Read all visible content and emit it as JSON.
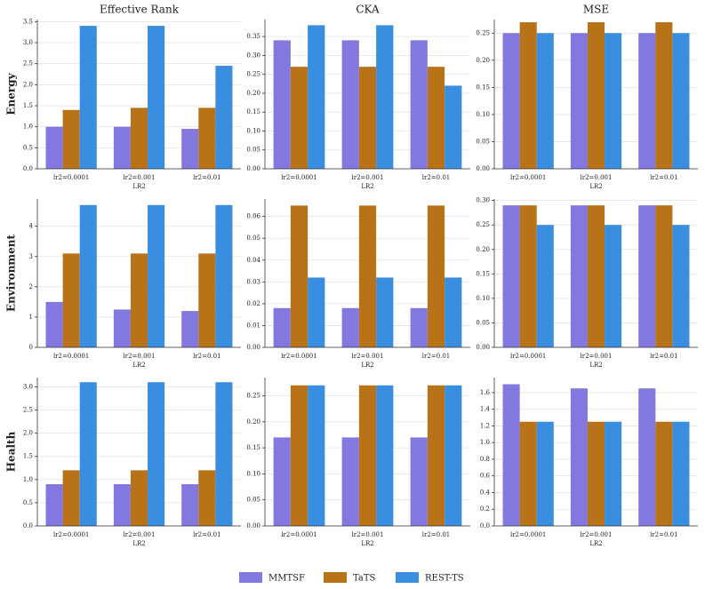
{
  "chart_data": [
    {
      "type": "bar",
      "title": "Effective Rank",
      "row_label": "Energy",
      "xlabel": "LR2",
      "categories": [
        "lr2=0.0001",
        "lr2=0.001",
        "lr2=0.01"
      ],
      "series": [
        {
          "name": "MMTSF",
          "color": "#8278e0",
          "values": [
            1.0,
            1.0,
            0.95
          ]
        },
        {
          "name": "TaTS",
          "color": "#b87218",
          "values": [
            1.4,
            1.45,
            1.45
          ]
        },
        {
          "name": "REST-TS",
          "color": "#3a8ee0",
          "values": [
            3.4,
            3.4,
            2.45
          ]
        }
      ],
      "ylim": [
        0,
        3.55
      ],
      "yticks": [
        {
          "value": 0,
          "label": "0.0"
        },
        0.5,
        {
          "value": 1,
          "label": "1.0"
        },
        1.5,
        {
          "value": 2,
          "label": "2.0"
        },
        2.5,
        {
          "value": 3,
          "label": "3.0"
        },
        3.5
      ],
      "grid": true
    },
    {
      "type": "bar",
      "title": "CKA",
      "xlabel": "LR2",
      "categories": [
        "lr2=0.0001",
        "lr2=0.001",
        "lr2=0.01"
      ],
      "series": [
        {
          "values": [
            0.34,
            0.34,
            0.34
          ]
        },
        {
          "values": [
            0.27,
            0.27,
            0.27
          ]
        },
        {
          "values": [
            0.38,
            0.38,
            0.22
          ]
        }
      ],
      "ylim": [
        0,
        0.395
      ],
      "yticks": [
        {
          "value": 0,
          "label": "0.00"
        },
        0.05,
        {
          "value": 0.1,
          "label": "0.10"
        },
        0.15,
        {
          "value": 0.2,
          "label": "0.20"
        },
        0.25,
        {
          "value": 0.3,
          "label": "0.30"
        },
        0.35
      ],
      "grid": true
    },
    {
      "type": "bar",
      "title": "MSE",
      "xlabel": "LR2",
      "categories": [
        "lr2=0.0001",
        "lr2=0.001",
        "lr2=0.01"
      ],
      "series": [
        {
          "values": [
            0.25,
            0.25,
            0.25
          ]
        },
        {
          "values": [
            0.27,
            0.27,
            0.27
          ]
        },
        {
          "values": [
            0.25,
            0.25,
            0.25
          ]
        }
      ],
      "ylim": [
        0,
        0.275
      ],
      "yticks": [
        {
          "value": 0,
          "label": "0.00"
        },
        0.05,
        {
          "value": 0.1,
          "label": "0.10"
        },
        0.15,
        {
          "value": 0.2,
          "label": "0.20"
        },
        0.25
      ],
      "grid": true
    },
    {
      "type": "bar",
      "row_label": "Environment",
      "xlabel": "LR2",
      "categories": [
        "lr2=0.0001",
        "lr2=0.001",
        "lr2=0.01"
      ],
      "series": [
        {
          "values": [
            1.5,
            1.25,
            1.2
          ]
        },
        {
          "values": [
            3.1,
            3.1,
            3.1
          ]
        },
        {
          "values": [
            4.7,
            4.7,
            4.7
          ]
        }
      ],
      "ylim": [
        0,
        4.9
      ],
      "yticks": [
        0,
        1,
        2,
        3,
        4
      ],
      "grid": true
    },
    {
      "type": "bar",
      "xlabel": "LR2",
      "categories": [
        "lr2=0.0001",
        "lr2=0.001",
        "lr2=0.01"
      ],
      "series": [
        {
          "values": [
            0.018,
            0.018,
            0.018
          ]
        },
        {
          "values": [
            0.065,
            0.065,
            0.065
          ]
        },
        {
          "values": [
            0.032,
            0.032,
            0.032
          ]
        }
      ],
      "ylim": [
        0,
        0.068
      ],
      "yticks": [
        {
          "value": 0,
          "label": "0.00"
        },
        0.01,
        0.02,
        0.03,
        0.04,
        0.05,
        0.06
      ],
      "grid": true
    },
    {
      "type": "bar",
      "xlabel": "LR2",
      "categories": [
        "lr2=0.0001",
        "lr2=0.001",
        "lr2=0.01"
      ],
      "series": [
        {
          "values": [
            0.29,
            0.29,
            0.29
          ]
        },
        {
          "values": [
            0.29,
            0.29,
            0.29
          ]
        },
        {
          "values": [
            0.25,
            0.25,
            0.25
          ]
        }
      ],
      "ylim": [
        0,
        0.303
      ],
      "yticks": [
        {
          "value": 0,
          "label": "0.00"
        },
        0.05,
        {
          "value": 0.1,
          "label": "0.10"
        },
        0.15,
        {
          "value": 0.2,
          "label": "0.20"
        },
        0.25,
        {
          "value": 0.3,
          "label": "0.30"
        }
      ],
      "grid": true
    },
    {
      "type": "bar",
      "row_label": "Health",
      "xlabel": "LR2",
      "categories": [
        "lr2=0.0001",
        "lr2=0.001",
        "lr2=0.01"
      ],
      "series": [
        {
          "values": [
            0.9,
            0.9,
            0.9
          ]
        },
        {
          "values": [
            1.2,
            1.2,
            1.2
          ]
        },
        {
          "values": [
            3.1,
            3.1,
            3.1
          ]
        }
      ],
      "ylim": [
        0,
        3.2
      ],
      "yticks": [
        {
          "value": 0,
          "label": "0.0"
        },
        0.5,
        {
          "value": 1,
          "label": "1.0"
        },
        1.5,
        {
          "value": 2,
          "label": "2.0"
        },
        2.5,
        {
          "value": 3,
          "label": "3.0"
        }
      ],
      "grid": true
    },
    {
      "type": "bar",
      "xlabel": "LR2",
      "categories": [
        "lr2=0.0001",
        "lr2=0.001",
        "lr2=0.01"
      ],
      "series": [
        {
          "values": [
            0.17,
            0.17,
            0.17
          ]
        },
        {
          "values": [
            0.27,
            0.27,
            0.27
          ]
        },
        {
          "values": [
            0.27,
            0.27,
            0.27
          ]
        }
      ],
      "ylim": [
        0,
        0.285
      ],
      "yticks": [
        {
          "value": 0,
          "label": "0.00"
        },
        0.05,
        {
          "value": 0.1,
          "label": "0.10"
        },
        0.15,
        {
          "value": 0.2,
          "label": "0.20"
        },
        0.25
      ],
      "grid": true
    },
    {
      "type": "bar",
      "xlabel": "LR2",
      "categories": [
        "lr2=0.0001",
        "lr2=0.001",
        "lr2=0.01"
      ],
      "series": [
        {
          "values": [
            1.7,
            1.65,
            1.65
          ]
        },
        {
          "values": [
            1.25,
            1.25,
            1.25
          ]
        },
        {
          "values": [
            1.25,
            1.25,
            1.25
          ]
        }
      ],
      "ylim": [
        0,
        1.78
      ],
      "yticks": [
        {
          "value": 0,
          "label": "0.0"
        },
        0.2,
        0.4,
        0.6,
        0.8,
        {
          "value": 1,
          "label": "1.0"
        },
        1.2,
        1.4,
        1.6
      ],
      "grid": true
    }
  ]
}
